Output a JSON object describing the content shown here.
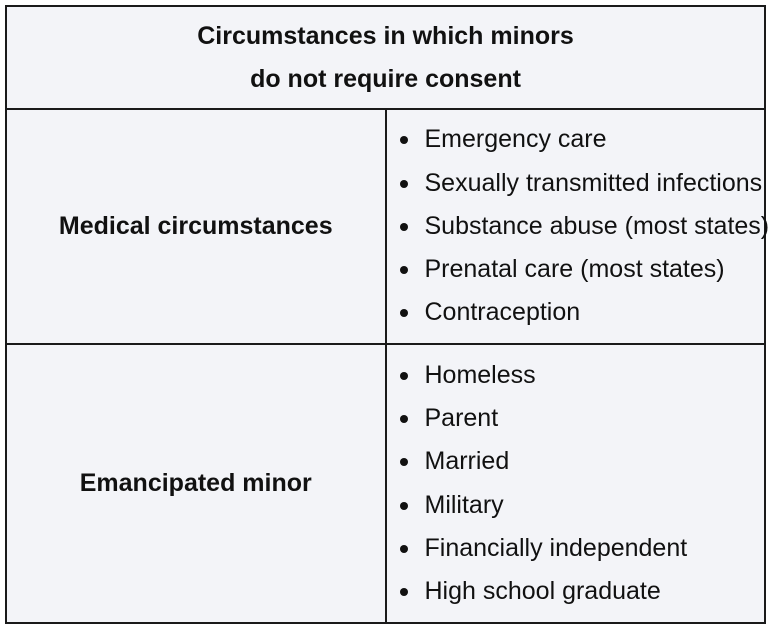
{
  "table": {
    "title_line1": "Circumstances in which minors",
    "title_line2": "do not require consent",
    "rows": [
      {
        "label": "Medical circumstances",
        "items": [
          "Emergency care",
          "Sexually transmitted infections",
          "Substance abuse (most states)",
          "Prenatal care (most states)",
          "Contraception"
        ]
      },
      {
        "label": "Emancipated minor",
        "items": [
          "Homeless",
          "Parent",
          "Married",
          "Military",
          "Financially independent",
          "High school graduate"
        ]
      }
    ]
  }
}
